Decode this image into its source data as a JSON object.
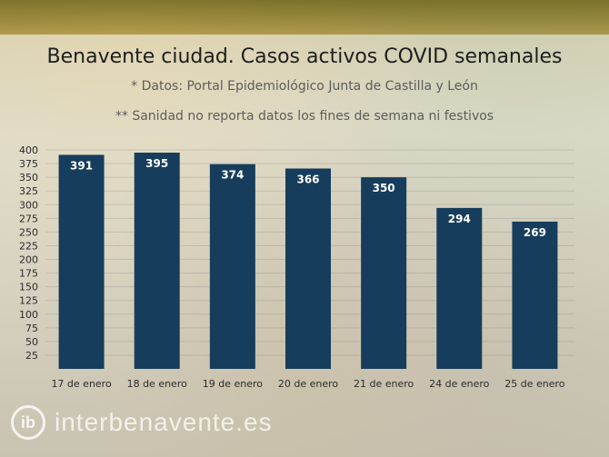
{
  "header": {
    "title": "Benavente ciudad. Casos activos COVID semanales",
    "subtitle1": "* Datos: Portal Epidemiológico Junta de Castilla y León",
    "subtitle2": "** Sanidad no reporta datos los fines de semana ni festivos"
  },
  "watermark": {
    "logo_glyph": "ib",
    "text": "interbenavente.es"
  },
  "colors": {
    "bar": "#163d5c",
    "label": "#ffffff"
  },
  "chart_data": {
    "type": "bar",
    "title": "Benavente ciudad. Casos activos COVID semanales",
    "xlabel": "",
    "ylabel": "",
    "categories": [
      "17 de enero",
      "18 de enero",
      "19 de enero",
      "20 de enero",
      "21 de enero",
      "24 de enero",
      "25 de enero"
    ],
    "values": [
      391,
      395,
      374,
      366,
      350,
      294,
      269
    ],
    "value_labels": [
      "391",
      "395",
      "374",
      "366",
      "350",
      "294",
      "269"
    ],
    "ylim": [
      0,
      400
    ],
    "yticks": [
      "25",
      "50",
      "75",
      "100",
      "125",
      "150",
      "175",
      "200",
      "225",
      "250",
      "275",
      "300",
      "325",
      "350",
      "375",
      "400"
    ],
    "grid": true,
    "legend": "none"
  }
}
